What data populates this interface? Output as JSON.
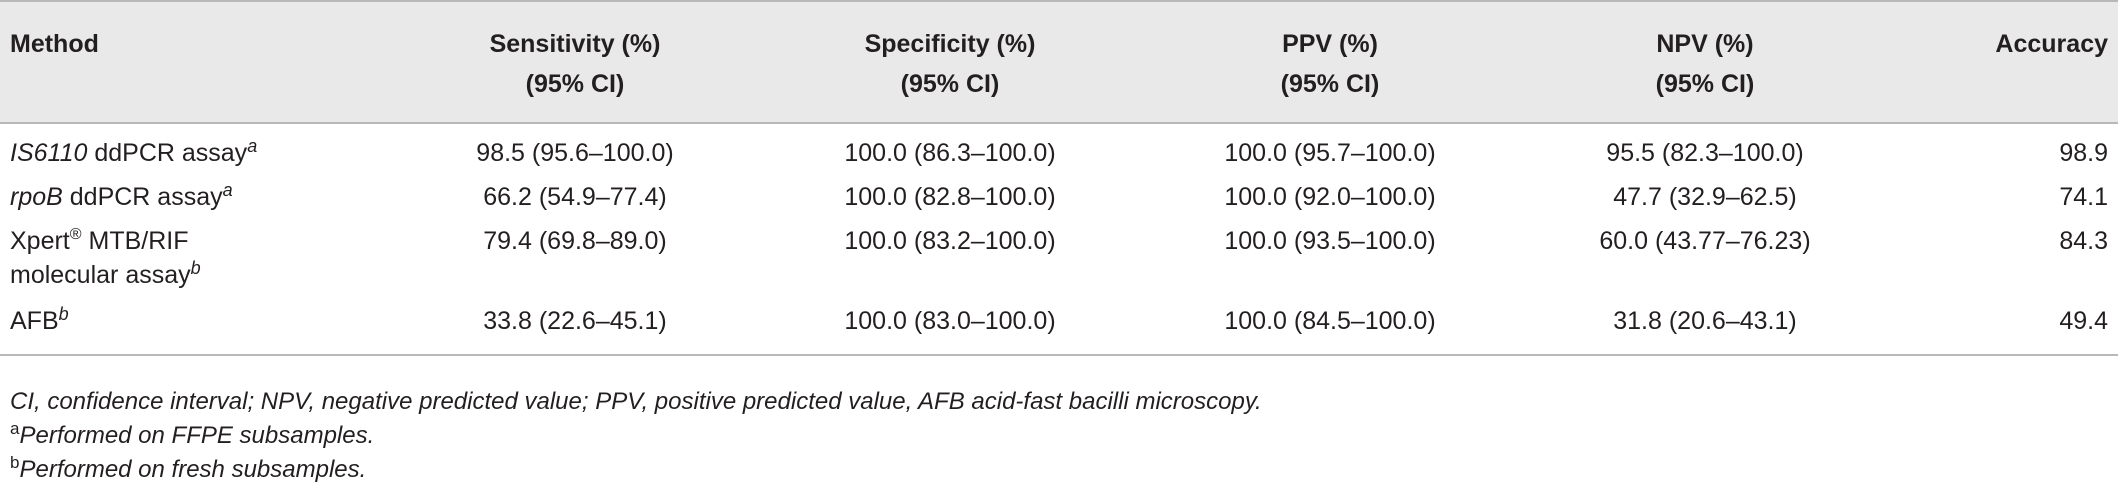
{
  "table": {
    "headers": [
      {
        "line1": "Method",
        "line2": ""
      },
      {
        "line1": "Sensitivity (%)",
        "line2": "(95% CI)"
      },
      {
        "line1": "Specificity (%)",
        "line2": "(95% CI)"
      },
      {
        "line1": "PPV (%)",
        "line2": "(95% CI)"
      },
      {
        "line1": "NPV (%)",
        "line2": "(95% CI)"
      },
      {
        "line1": "Accuracy",
        "line2": ""
      }
    ],
    "rows": [
      {
        "method_main": "IS6110",
        "method_rest": " ddPCR assay",
        "method_line2": "",
        "mark": "a",
        "sensitivity": "98.5 (95.6–100.0)",
        "specificity": "100.0 (86.3–100.0)",
        "ppv": "100.0 (95.7–100.0)",
        "npv": "95.5 (82.3–100.0)",
        "accuracy": "98.9"
      },
      {
        "method_main": "rpoB",
        "method_rest": " ddPCR assay",
        "method_line2": "",
        "mark": "a",
        "sensitivity": "66.2 (54.9–77.4)",
        "specificity": "100.0 (82.8–100.0)",
        "ppv": "100.0 (92.0–100.0)",
        "npv": "47.7 (32.9–62.5)",
        "accuracy": "74.1"
      },
      {
        "method_main": "Xpert",
        "reg_symbol": "®",
        "method_rest": " MTB/RIF",
        "method_line2": "molecular assay",
        "mark": "b",
        "sensitivity": "79.4 (69.8–89.0)",
        "specificity": "100.0 (83.2–100.0)",
        "ppv": "100.0 (93.5–100.0)",
        "npv": "60.0 (43.77–76.23)",
        "accuracy": "84.3"
      },
      {
        "method_main": "AFB",
        "method_rest": "",
        "method_line2": "",
        "mark": "b",
        "sensitivity": "33.8 (22.6–45.1)",
        "specificity": "100.0 (83.0–100.0)",
        "ppv": "100.0 (84.5–100.0)",
        "npv": "31.8 (20.6–43.1)",
        "accuracy": "49.4"
      }
    ]
  },
  "footnotes": {
    "abbreviations": "CI, confidence interval; NPV, negative predicted value; PPV, positive predicted value, AFB acid-fast bacilli microscopy.",
    "a_mark": "a",
    "a_text": "Performed on FFPE subsamples.",
    "b_mark": "b",
    "b_text": "Performed on fresh subsamples."
  }
}
